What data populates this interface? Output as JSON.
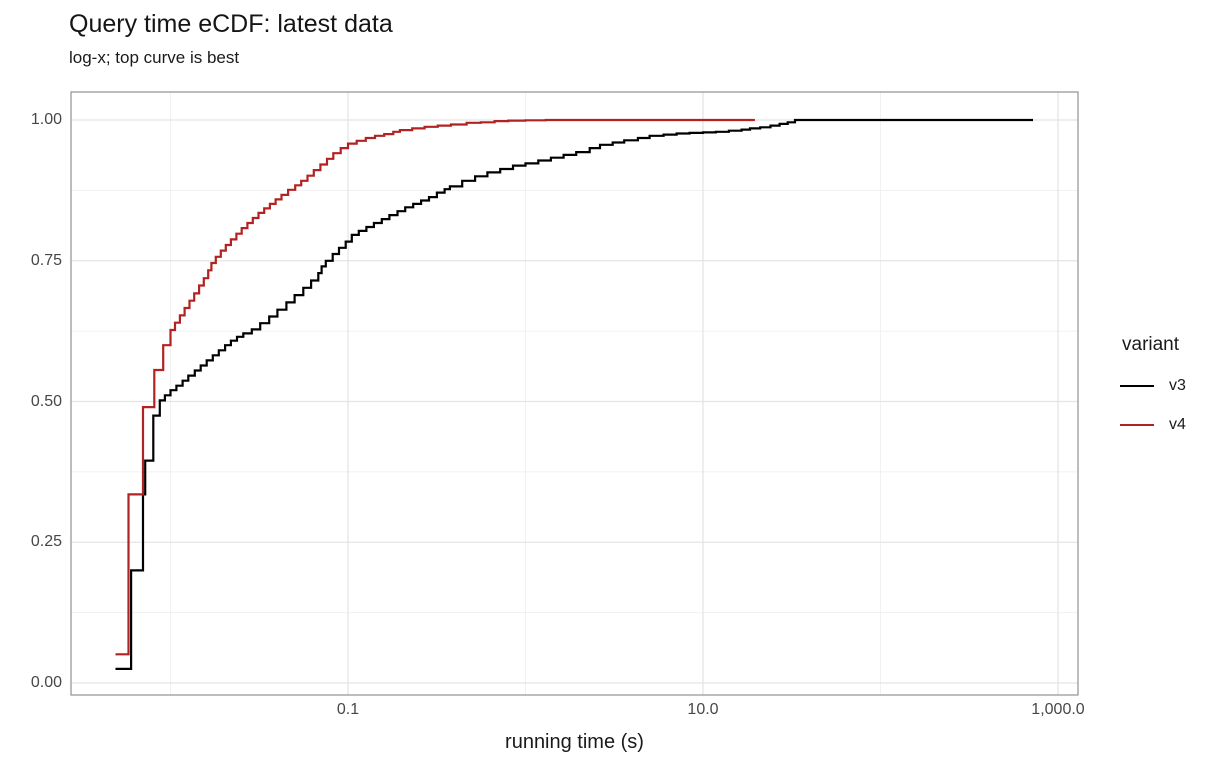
{
  "title": "Query time eCDF: latest data",
  "subtitle": "log-x; top curve is best",
  "x_axis": {
    "label": "running time (s)",
    "scale": "log10",
    "ticks": [
      {
        "value": 0.1,
        "label": "0.1"
      },
      {
        "value": 10,
        "label": "10.0"
      },
      {
        "value": 1000,
        "label": "1,000.0"
      }
    ],
    "minor_gridlines": [
      0.01,
      1,
      100
    ]
  },
  "y_axis": {
    "label": "",
    "ticks": [
      {
        "value": 0.0,
        "label": "0.00"
      },
      {
        "value": 0.25,
        "label": "0.25"
      },
      {
        "value": 0.5,
        "label": "0.50"
      },
      {
        "value": 0.75,
        "label": "0.75"
      },
      {
        "value": 1.0,
        "label": "1.00"
      }
    ],
    "minor_gridlines": [
      0.125,
      0.375,
      0.625,
      0.875
    ]
  },
  "legend": {
    "title": "variant",
    "entries": [
      {
        "label": "v3",
        "color": "#000000"
      },
      {
        "label": "v4",
        "color": "#B22222"
      }
    ]
  },
  "colors": {
    "v3": "#000000",
    "v4": "#B22222",
    "grid_major": "#e4e4e4",
    "grid_minor": "#f1f1f1",
    "panel_border": "#919191",
    "background": "#ffffff"
  },
  "chart_data": {
    "type": "line",
    "subtype": "ecdf_step",
    "title": "Query time eCDF: latest data",
    "subtitle": "log-x; top curve is best",
    "xlabel": "running time (s)",
    "ylabel": "",
    "x_scale": "log10",
    "xlim": [
      0.00275,
      1300
    ],
    "ylim": [
      0,
      1
    ],
    "grid": true,
    "legend_position": "right",
    "series": [
      {
        "name": "v3",
        "color": "#000000",
        "points": [
          [
            0.0049,
            0.025
          ],
          [
            0.006,
            0.2
          ],
          [
            0.007,
            0.335
          ],
          [
            0.0072,
            0.395
          ],
          [
            0.008,
            0.475
          ],
          [
            0.0087,
            0.502
          ],
          [
            0.0093,
            0.511
          ],
          [
            0.01,
            0.52
          ],
          [
            0.0108,
            0.528
          ],
          [
            0.0117,
            0.537
          ],
          [
            0.0126,
            0.546
          ],
          [
            0.0137,
            0.555
          ],
          [
            0.0148,
            0.564
          ],
          [
            0.016,
            0.573
          ],
          [
            0.0173,
            0.582
          ],
          [
            0.0187,
            0.591
          ],
          [
            0.0203,
            0.6
          ],
          [
            0.0219,
            0.608
          ],
          [
            0.0237,
            0.615
          ],
          [
            0.0257,
            0.621
          ],
          [
            0.0287,
            0.628
          ],
          [
            0.032,
            0.639
          ],
          [
            0.036,
            0.651
          ],
          [
            0.04,
            0.663
          ],
          [
            0.045,
            0.676
          ],
          [
            0.05,
            0.689
          ],
          [
            0.056,
            0.702
          ],
          [
            0.062,
            0.715
          ],
          [
            0.068,
            0.728
          ],
          [
            0.071,
            0.74
          ],
          [
            0.075,
            0.75
          ],
          [
            0.082,
            0.762
          ],
          [
            0.089,
            0.773
          ],
          [
            0.097,
            0.784
          ],
          [
            0.105,
            0.796
          ],
          [
            0.115,
            0.803
          ],
          [
            0.127,
            0.81
          ],
          [
            0.14,
            0.817
          ],
          [
            0.155,
            0.824
          ],
          [
            0.171,
            0.831
          ],
          [
            0.19,
            0.838
          ],
          [
            0.21,
            0.845
          ],
          [
            0.233,
            0.851
          ],
          [
            0.258,
            0.857
          ],
          [
            0.286,
            0.863
          ],
          [
            0.317,
            0.871
          ],
          [
            0.35,
            0.877
          ],
          [
            0.375,
            0.882
          ],
          [
            0.44,
            0.892
          ],
          [
            0.52,
            0.9
          ],
          [
            0.61,
            0.907
          ],
          [
            0.72,
            0.913
          ],
          [
            0.85,
            0.919
          ],
          [
            1.0,
            0.923
          ],
          [
            1.18,
            0.928
          ],
          [
            1.39,
            0.933
          ],
          [
            1.64,
            0.938
          ],
          [
            1.93,
            0.943
          ],
          [
            2.3,
            0.95
          ],
          [
            2.63,
            0.956
          ],
          [
            3.1,
            0.96
          ],
          [
            3.6,
            0.964
          ],
          [
            4.3,
            0.968
          ],
          [
            5.0,
            0.972
          ],
          [
            6.0,
            0.974
          ],
          [
            7.1,
            0.976
          ],
          [
            8.4,
            0.977
          ],
          [
            10.0,
            0.978
          ],
          [
            11.8,
            0.979
          ],
          [
            14.0,
            0.981
          ],
          [
            16.5,
            0.983
          ],
          [
            18.4,
            0.985
          ],
          [
            21.0,
            0.987
          ],
          [
            24.0,
            0.99
          ],
          [
            27.0,
            0.993
          ],
          [
            30.0,
            0.996
          ],
          [
            33.0,
            1.0
          ],
          [
            723,
            1.0
          ]
        ]
      },
      {
        "name": "v4",
        "color": "#B22222",
        "points": [
          [
            0.0049,
            0.051
          ],
          [
            0.0058,
            0.335
          ],
          [
            0.007,
            0.49
          ],
          [
            0.0081,
            0.556
          ],
          [
            0.0091,
            0.6
          ],
          [
            0.01,
            0.627
          ],
          [
            0.0106,
            0.64
          ],
          [
            0.0113,
            0.653
          ],
          [
            0.012,
            0.666
          ],
          [
            0.0128,
            0.679
          ],
          [
            0.0136,
            0.692
          ],
          [
            0.0145,
            0.706
          ],
          [
            0.0154,
            0.719
          ],
          [
            0.0163,
            0.733
          ],
          [
            0.017,
            0.746
          ],
          [
            0.018,
            0.757
          ],
          [
            0.0192,
            0.768
          ],
          [
            0.0205,
            0.778
          ],
          [
            0.0219,
            0.788
          ],
          [
            0.0235,
            0.798
          ],
          [
            0.0252,
            0.808
          ],
          [
            0.0271,
            0.817
          ],
          [
            0.0291,
            0.826
          ],
          [
            0.0313,
            0.835
          ],
          [
            0.0337,
            0.843
          ],
          [
            0.0363,
            0.851
          ],
          [
            0.0391,
            0.859
          ],
          [
            0.0422,
            0.867
          ],
          [
            0.046,
            0.876
          ],
          [
            0.0504,
            0.884
          ],
          [
            0.0545,
            0.892
          ],
          [
            0.0591,
            0.901
          ],
          [
            0.0642,
            0.911
          ],
          [
            0.0699,
            0.921
          ],
          [
            0.0762,
            0.931
          ],
          [
            0.0826,
            0.941
          ],
          [
            0.091,
            0.95
          ],
          [
            0.1,
            0.958
          ],
          [
            0.112,
            0.963
          ],
          [
            0.126,
            0.968
          ],
          [
            0.142,
            0.972
          ],
          [
            0.16,
            0.975
          ],
          [
            0.18,
            0.979
          ],
          [
            0.196,
            0.982
          ],
          [
            0.23,
            0.985
          ],
          [
            0.27,
            0.988
          ],
          [
            0.32,
            0.99
          ],
          [
            0.38,
            0.992
          ],
          [
            0.466,
            0.995
          ],
          [
            0.56,
            0.996
          ],
          [
            0.67,
            0.998
          ],
          [
            0.8,
            0.999
          ],
          [
            1.0,
            0.9995
          ],
          [
            1.3,
            1.0
          ],
          [
            19.6,
            1.0
          ]
        ]
      }
    ]
  }
}
